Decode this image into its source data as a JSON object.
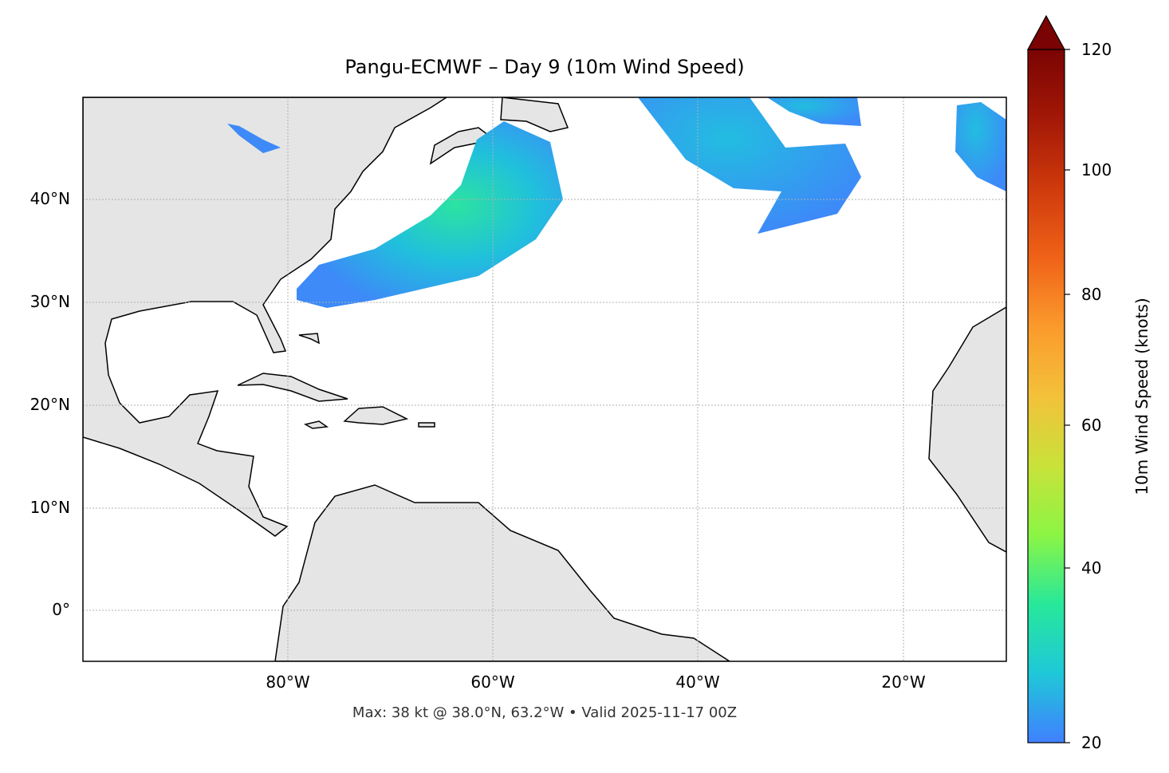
{
  "title": "Pangu-ECMWF – Day 9 (10m Wind Speed)",
  "footer": "Max: 38 kt @ 38.0°N, 63.2°W • Valid 2025-11-17 00Z",
  "map": {
    "extent": {
      "lon": [
        -100,
        -10
      ],
      "lat": [
        -5,
        50
      ]
    },
    "lat_ticks": [
      "40°N",
      "30°N",
      "20°N",
      "10°N",
      "0°"
    ],
    "lon_ticks": [
      "80°W",
      "60°W",
      "40°W",
      "20°W"
    ],
    "gridlines": true,
    "land_color": "#e5e5e5",
    "max_wind": {
      "value_kt": 38,
      "lat": 38.0,
      "lon": -63.2
    }
  },
  "colorbar": {
    "label": "10m Wind Speed (knots)",
    "ticks": [
      "20",
      "40",
      "60",
      "80",
      "100",
      "120"
    ],
    "range": [
      20,
      120
    ],
    "extend": "max",
    "colors": [
      "#4080ff",
      "#1fc8d8",
      "#27e89a",
      "#8cf544",
      "#c9e23a",
      "#f3c13a",
      "#fb9a2c",
      "#ef6218",
      "#cf3a0c",
      "#a31807",
      "#7a0403"
    ]
  }
}
